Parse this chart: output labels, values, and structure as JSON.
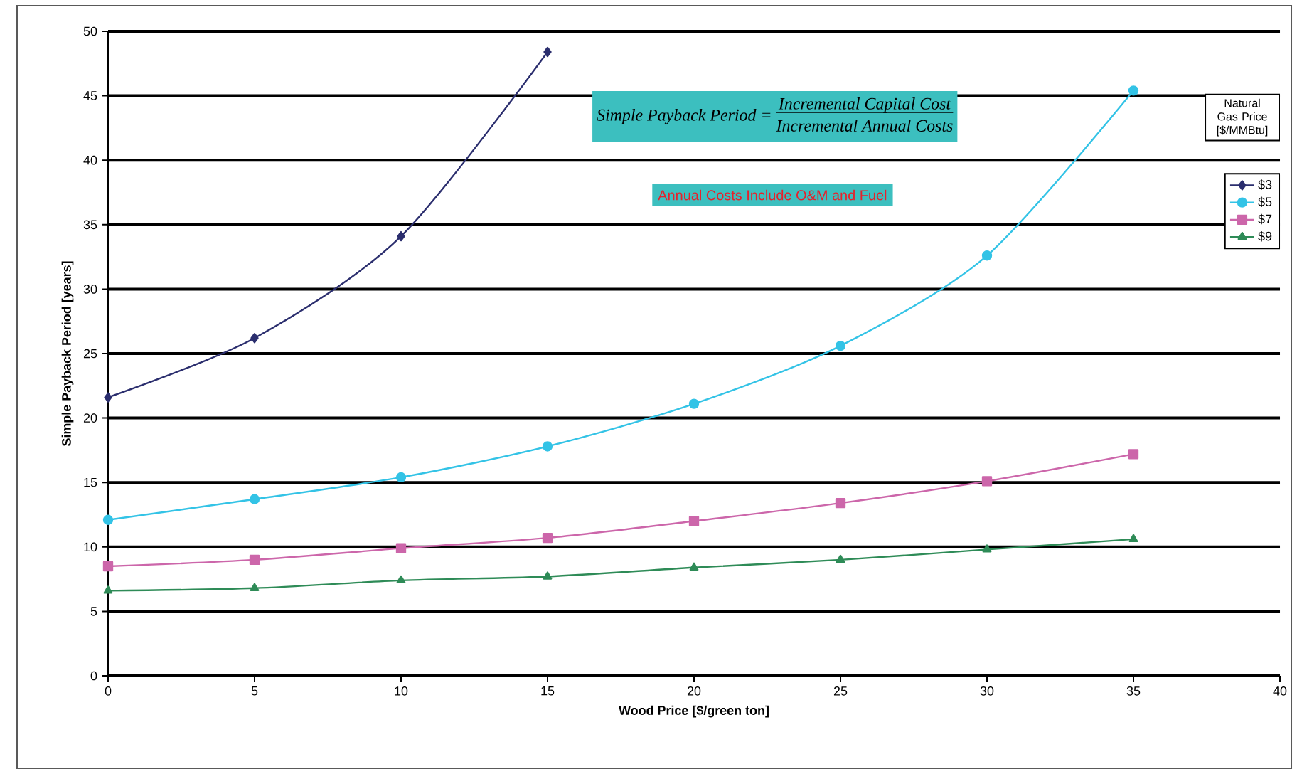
{
  "chart_data": {
    "type": "line",
    "xlabel": "Wood Price [$/green ton]",
    "ylabel": "Simple Payback Period [years]",
    "legend_title": "Natural Gas Price [$/MMBtu]",
    "xlim": [
      0,
      40
    ],
    "xticks": [
      0,
      5,
      10,
      15,
      20,
      25,
      30,
      35,
      40
    ],
    "ylim": [
      0,
      50
    ],
    "yticks": [
      0,
      5,
      10,
      15,
      20,
      25,
      30,
      35,
      40,
      45,
      50
    ],
    "grid": "y",
    "legend": "top right",
    "series": [
      {
        "name": "$3",
        "color": "#2b2e6e",
        "marker": "diamond",
        "x": [
          0,
          5,
          10,
          15
        ],
        "values": [
          21.6,
          26.2,
          34.1,
          48.4
        ]
      },
      {
        "name": "$5",
        "color": "#33c3e6",
        "marker": "circle",
        "x": [
          0,
          5,
          10,
          15,
          20,
          25,
          30,
          35
        ],
        "values": [
          12.1,
          13.7,
          15.4,
          17.8,
          21.1,
          25.6,
          32.6,
          45.4
        ]
      },
      {
        "name": "$7",
        "color": "#cc66aa",
        "marker": "square",
        "x": [
          0,
          5,
          10,
          15,
          20,
          25,
          30,
          35
        ],
        "values": [
          8.5,
          9.0,
          9.9,
          10.7,
          12.0,
          13.4,
          15.1,
          17.2
        ]
      },
      {
        "name": "$9",
        "color": "#2e8b57",
        "marker": "triangle",
        "x": [
          0,
          5,
          10,
          15,
          20,
          25,
          30,
          35
        ],
        "values": [
          6.6,
          6.8,
          7.4,
          7.7,
          8.4,
          9.0,
          9.8,
          10.6
        ]
      }
    ],
    "annotations": [
      "Simple Payback Period =",
      "Incremental Capital Cost",
      "Incremental Annual Costs",
      "Annual Costs Include O&M and Fuel"
    ]
  }
}
